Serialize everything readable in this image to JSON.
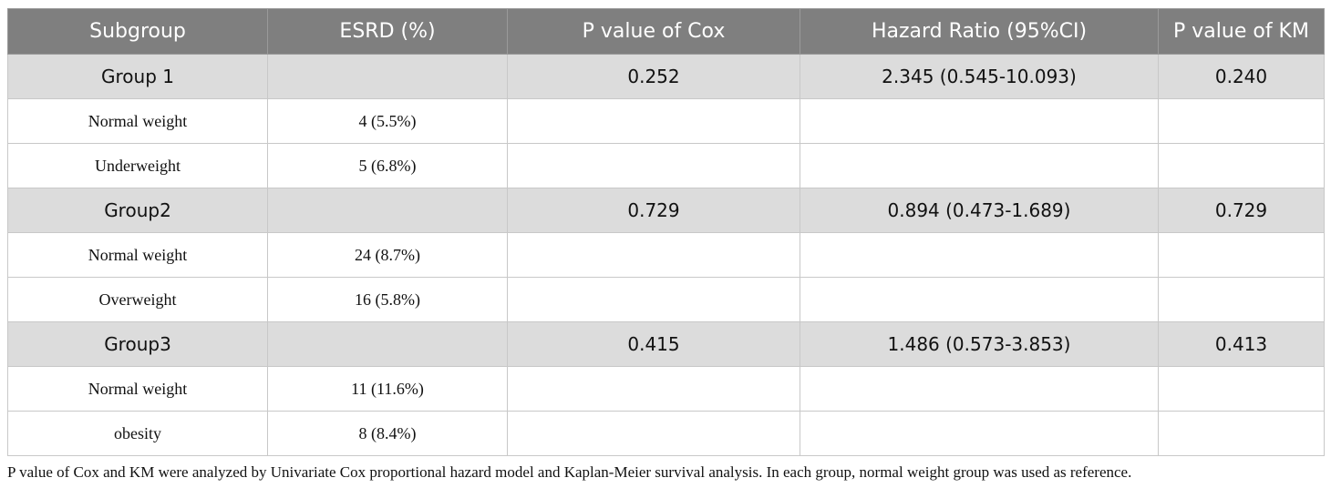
{
  "table": {
    "headers": [
      "Subgroup",
      "ESRD (%)",
      "P value of Cox",
      "Hazard Ratio (95%CI)",
      "P value of KM"
    ],
    "rows": [
      {
        "type": "group",
        "cells": [
          "Group 1",
          "",
          "0.252",
          "2.345 (0.545-10.093)",
          "0.240"
        ]
      },
      {
        "type": "sub",
        "cells": [
          "Normal weight",
          "4 (5.5%)",
          "",
          "",
          ""
        ]
      },
      {
        "type": "sub",
        "cells": [
          "Underweight",
          "5 (6.8%)",
          "",
          "",
          ""
        ]
      },
      {
        "type": "group",
        "cells": [
          "Group2",
          "",
          "0.729",
          "0.894 (0.473-1.689)",
          "0.729"
        ]
      },
      {
        "type": "sub",
        "cells": [
          "Normal weight",
          "24 (8.7%)",
          "",
          "",
          ""
        ]
      },
      {
        "type": "sub",
        "cells": [
          "Overweight",
          "16 (5.8%)",
          "",
          "",
          ""
        ]
      },
      {
        "type": "group",
        "cells": [
          "Group3",
          "",
          "0.415",
          "1.486 (0.573-3.853)",
          "0.413"
        ]
      },
      {
        "type": "sub",
        "cells": [
          "Normal weight",
          "11 (11.6%)",
          "",
          "",
          ""
        ]
      },
      {
        "type": "sub",
        "cells": [
          "obesity",
          "8 (8.4%)",
          "",
          "",
          ""
        ]
      }
    ]
  },
  "footnote": "P value of Cox and KM were analyzed by Univariate Cox proportional hazard model and Kaplan-Meier survival analysis. In each group, normal weight group was used as reference."
}
